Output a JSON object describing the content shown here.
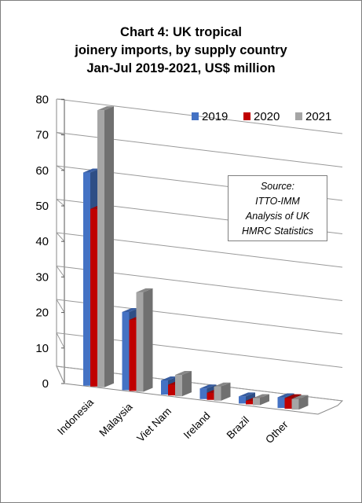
{
  "chart_data": {
    "type": "bar",
    "title_lines": [
      "Chart 4: UK tropical",
      "joinery imports, by supply country",
      "Jan-Jul 2019-2021, US$ million"
    ],
    "categories": [
      "Indonesia",
      "Malaysia",
      "Viet Nam",
      "Ireland",
      "Brazil",
      "Other"
    ],
    "series": [
      {
        "name": "2019",
        "values": [
          60,
          22,
          4,
          3,
          2,
          3
        ],
        "color": "#4472c4"
      },
      {
        "name": "2020",
        "values": [
          50,
          20,
          3,
          2,
          1,
          3
        ],
        "color": "#c00000"
      },
      {
        "name": "2021",
        "values": [
          78,
          28,
          6,
          4,
          2,
          3
        ],
        "color": "#a5a5a5"
      }
    ],
    "yticks": [
      0,
      10,
      20,
      30,
      40,
      50,
      60,
      70,
      80
    ],
    "ylim": [
      0,
      80
    ],
    "grid": true,
    "legend_position": "top-right",
    "style": "3d-clustered-column",
    "source_lines": [
      "Source:",
      "ITTO-IMM",
      "Analysis of UK",
      "HMRC Statistics"
    ]
  }
}
